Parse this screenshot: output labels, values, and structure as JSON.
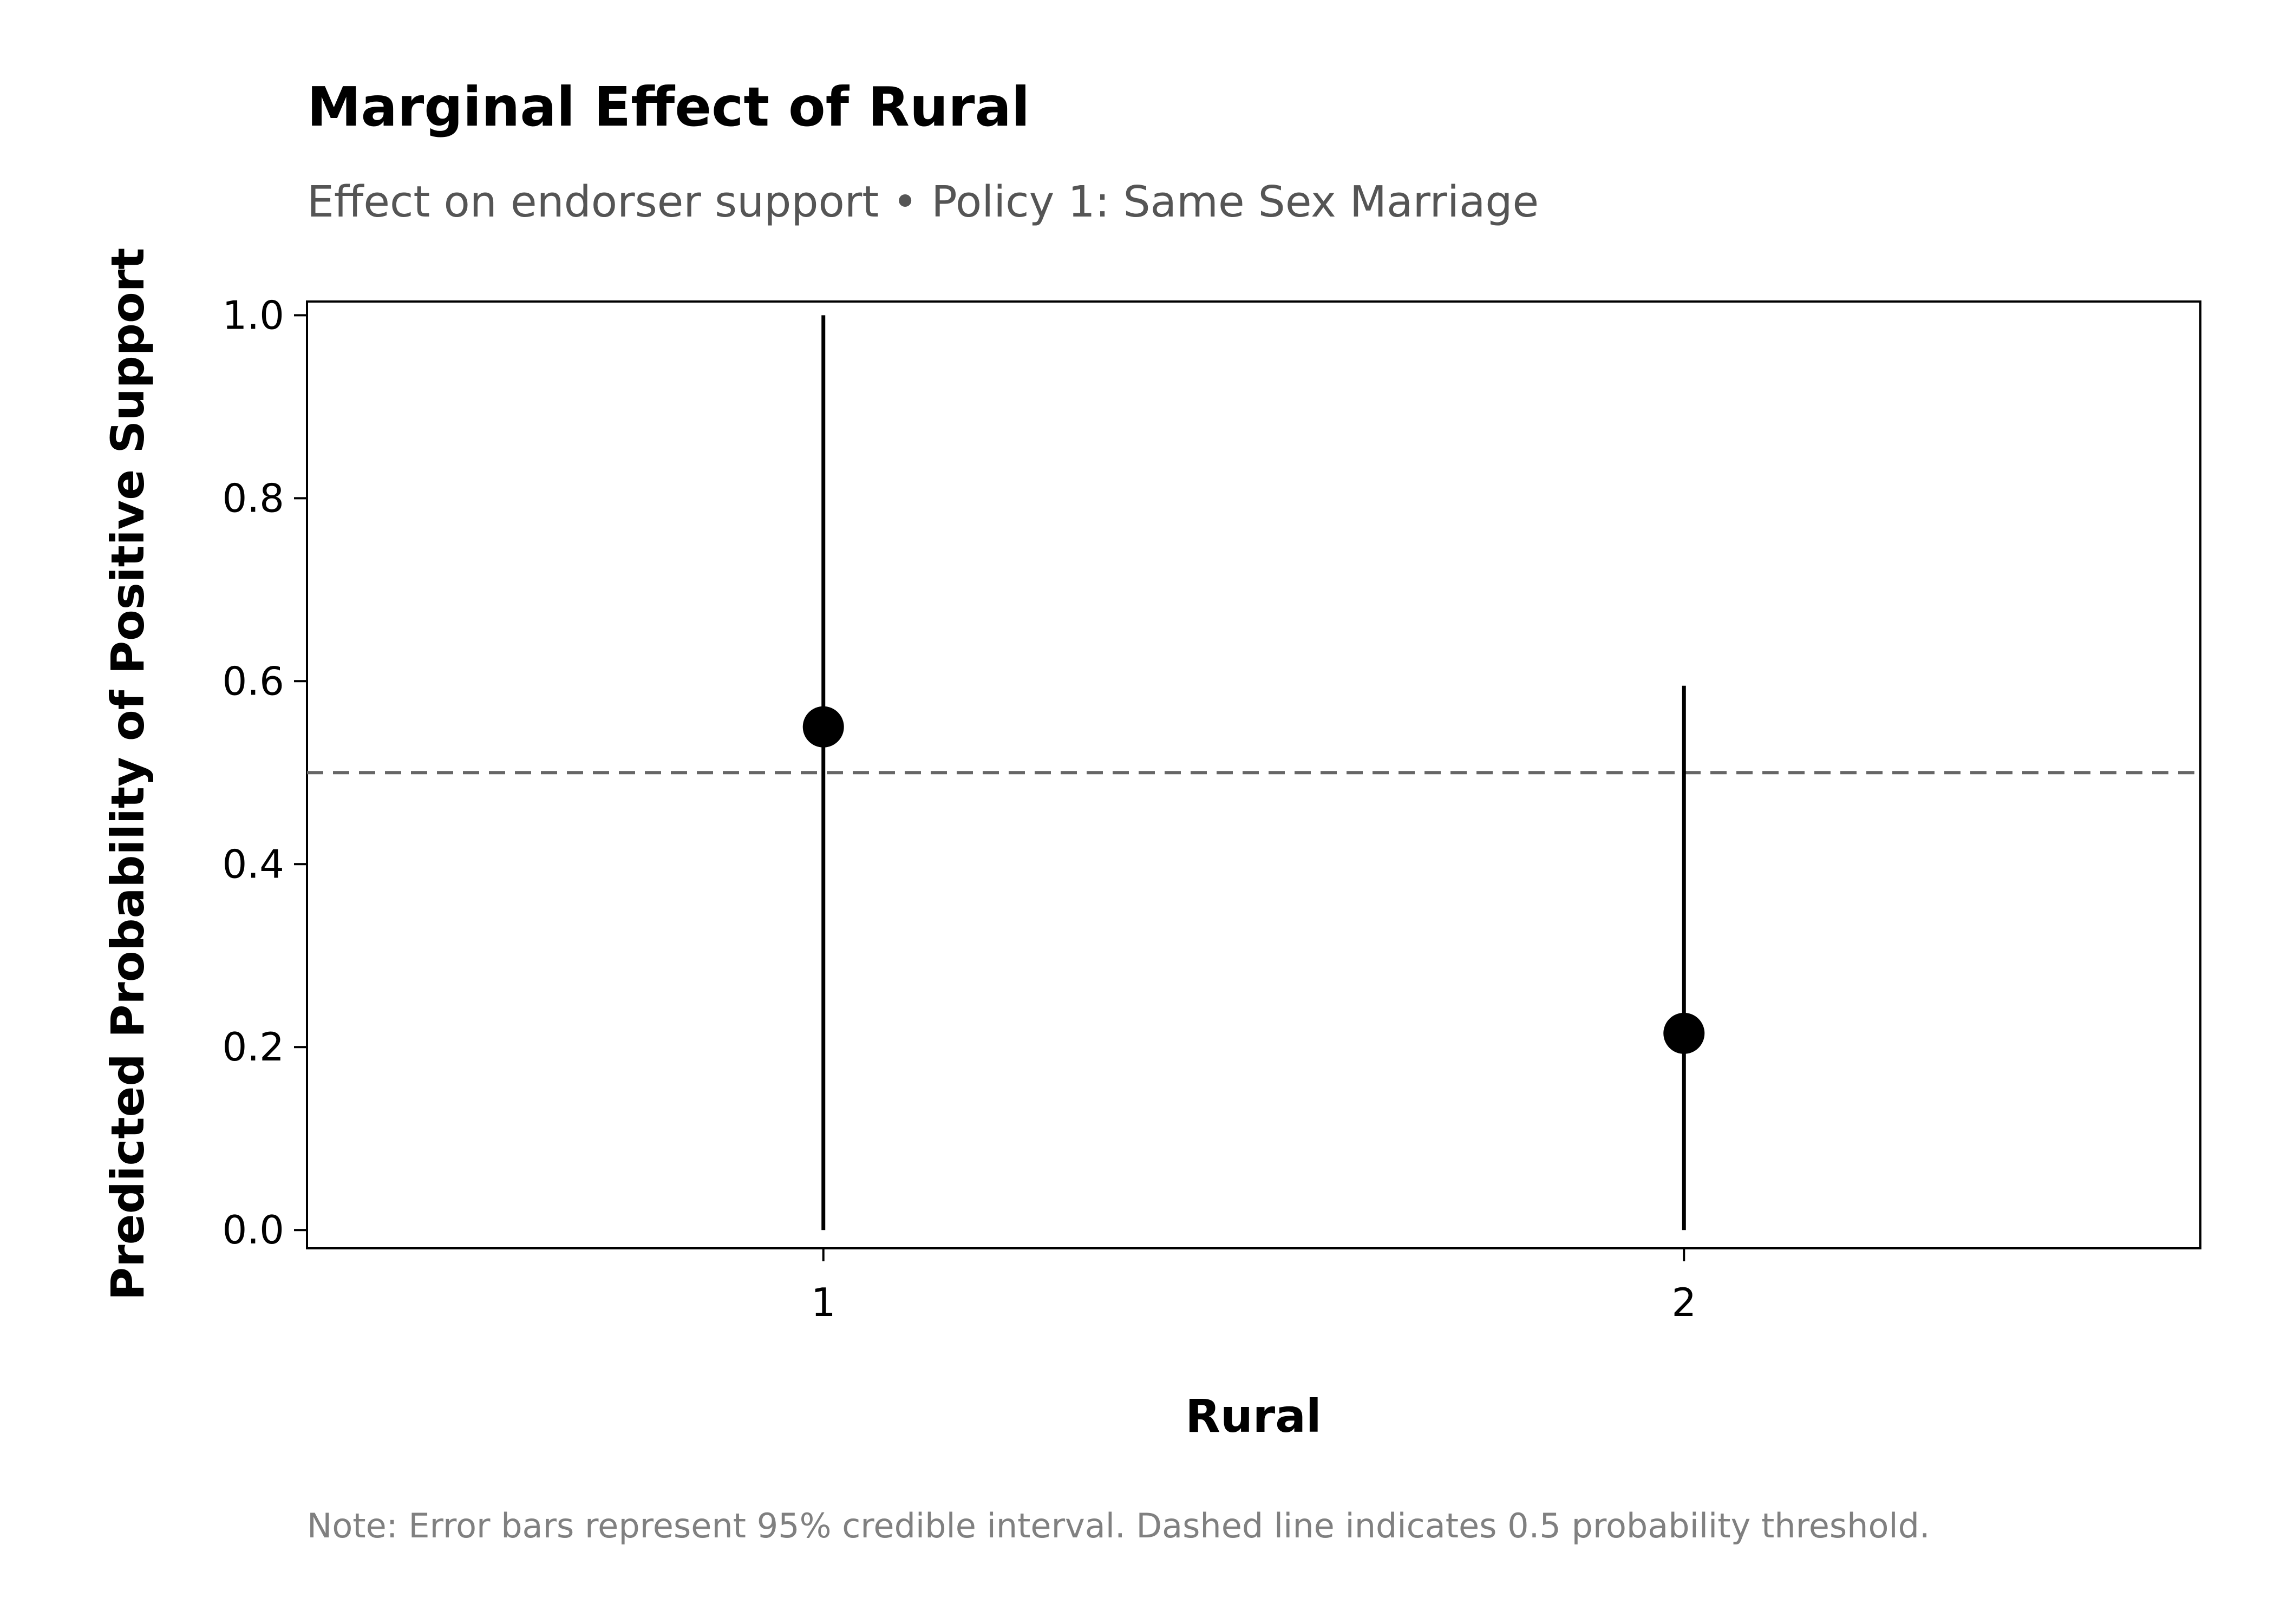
{
  "chart_data": {
    "type": "scatter",
    "title": "Marginal Effect of Rural",
    "subtitle": "Effect on endorser support • Policy 1: Same Sex Marriage",
    "xlabel": "Rural",
    "ylabel": "Predicted Probability of Positive Support",
    "categories": [
      "1",
      "2"
    ],
    "points": [
      {
        "x": "1",
        "estimate": 0.55,
        "lower": 0.0,
        "upper": 1.0
      },
      {
        "x": "2",
        "estimate": 0.215,
        "lower": 0.0,
        "upper": 0.595
      }
    ],
    "ylim": [
      -0.02,
      1.015
    ],
    "yticks": [
      0.0,
      0.2,
      0.4,
      0.6,
      0.8,
      1.0
    ],
    "ytick_labels": [
      "0.0",
      "0.2",
      "0.4",
      "0.6",
      "0.8",
      "1.0"
    ],
    "reference_line": {
      "y": 0.5,
      "style": "dashed",
      "color": "#666666"
    },
    "grid": false,
    "marker_color": "#000000",
    "note": "Note: Error bars represent 95% credible interval. Dashed line indicates 0.5 probability threshold."
  }
}
